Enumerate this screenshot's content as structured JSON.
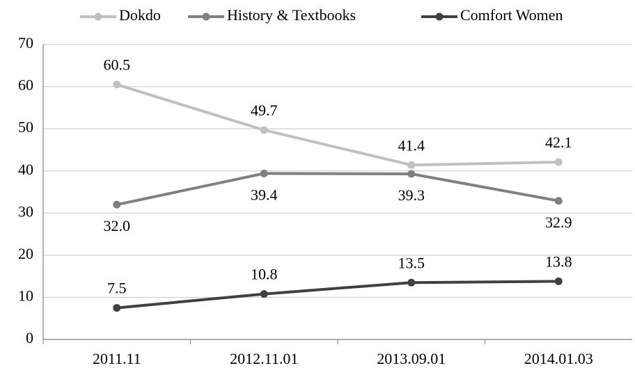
{
  "chart_data": {
    "type": "line",
    "categories": [
      "2011.11",
      "2012.11.01",
      "2013.09.01",
      "2014.01.03"
    ],
    "series": [
      {
        "name": "Dokdo",
        "color": "#c0c0c0",
        "values": [
          60.5,
          49.7,
          41.4,
          42.1
        ]
      },
      {
        "name": "History & Textbooks",
        "color": "#808080",
        "values": [
          32.0,
          39.4,
          39.3,
          32.9
        ],
        "value_labels": [
          "32.0",
          "39.4",
          "39.3",
          "32.9"
        ]
      },
      {
        "name": "Comfort Women",
        "color": "#404040",
        "values": [
          7.5,
          10.8,
          13.5,
          13.8
        ]
      }
    ],
    "ylim": [
      0,
      70
    ],
    "yticks": [
      0,
      10,
      20,
      30,
      40,
      50,
      60,
      70
    ],
    "grid": true,
    "legend": "top"
  }
}
